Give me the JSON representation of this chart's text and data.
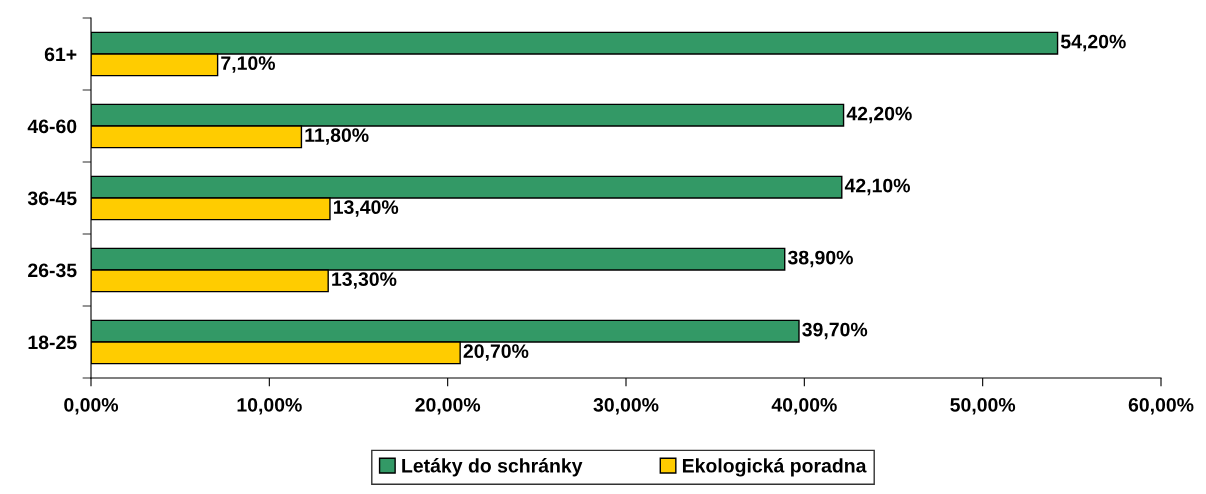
{
  "chart_data": {
    "type": "bar",
    "orientation": "horizontal",
    "categories": [
      "61+",
      "46-60",
      "36-45",
      "26-35",
      "18-25"
    ],
    "series": [
      {
        "name": "Letáky do schránky",
        "color": "#339966",
        "values": [
          54.2,
          42.2,
          42.1,
          38.9,
          39.7
        ],
        "value_labels": [
          "54,20%",
          "42,20%",
          "42,10%",
          "38,90%",
          "39,70%"
        ]
      },
      {
        "name": "Ekologická poradna",
        "color": "#ffcc00",
        "values": [
          7.1,
          11.8,
          13.4,
          13.3,
          20.7
        ],
        "value_labels": [
          "7,10%",
          "11,80%",
          "13,40%",
          "13,30%",
          "20,70%"
        ]
      }
    ],
    "xlim": [
      0,
      60
    ],
    "xticks": [
      {
        "value": 0,
        "label": "0,00%"
      },
      {
        "value": 10,
        "label": "10,00%"
      },
      {
        "value": 20,
        "label": "20,00%"
      },
      {
        "value": 30,
        "label": "30,00%"
      },
      {
        "value": 40,
        "label": "40,00%"
      },
      {
        "value": 50,
        "label": "50,00%"
      },
      {
        "value": 60,
        "label": "60,00%"
      }
    ],
    "grid": false,
    "legend": "bottom"
  }
}
